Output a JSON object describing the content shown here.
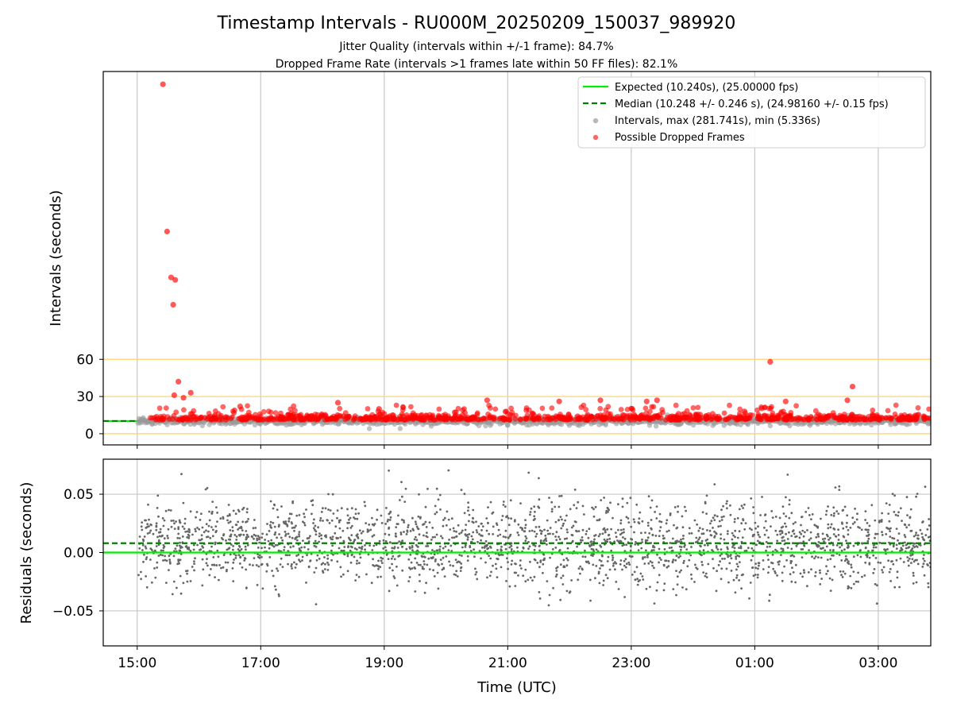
{
  "title": "Timestamp Intervals - RU000M_20250209_150037_989920",
  "subtitle_1": "Jitter Quality (intervals within +/-1 frame): 84.7%",
  "subtitle_2": "Dropped Frame Rate (intervals >1 frames late within 50 FF files): 82.1%",
  "colors": {
    "expected": "#00ee00",
    "median": "#007f00",
    "intervals": "#999999",
    "dropped": "#ff0000",
    "threshold": "#ffd36e",
    "grid": "#c8c8c8",
    "residual": "#666666"
  },
  "chart_data": [
    {
      "type": "scatter",
      "ylabel": "Intervals (seconds)",
      "x_range_hours": [
        14.45,
        27.85
      ],
      "ylim": [
        -9,
        292
      ],
      "y_ticks": [
        0,
        30,
        60
      ],
      "grid": "vertical",
      "threshold_lines": [
        0,
        30,
        60
      ],
      "legend_position": "top-right",
      "legend": [
        "Expected (10.240s), (25.00000 fps)",
        "Median (10.248 +/- 0.246 s), (24.98160 +/- 0.15 fps)",
        "Intervals, max (281.741s), min (5.336s)",
        "Possible Dropped Frames"
      ],
      "expected_interval": 10.24,
      "median_interval": 10.248,
      "dropped_frame_outliers": [
        {
          "time": "15:25",
          "interval": 281.7
        },
        {
          "time": "15:29",
          "interval": 163
        },
        {
          "time": "15:33",
          "interval": 126
        },
        {
          "time": "15:37",
          "interval": 124
        },
        {
          "time": "15:35",
          "interval": 104
        },
        {
          "time": "15:40",
          "interval": 42
        },
        {
          "time": "15:45",
          "interval": 29
        },
        {
          "time": "15:52",
          "interval": 33
        },
        {
          "time": "15:36",
          "interval": 31
        },
        {
          "time": "16:40",
          "interval": 22
        },
        {
          "time": "18:15",
          "interval": 25
        },
        {
          "time": "18:55",
          "interval": 20
        },
        {
          "time": "20:40",
          "interval": 27
        },
        {
          "time": "21:50",
          "interval": 26
        },
        {
          "time": "22:30",
          "interval": 27
        },
        {
          "time": "23:15",
          "interval": 26
        },
        {
          "time": "23:25",
          "interval": 27
        },
        {
          "time": "24:50",
          "interval": 18
        },
        {
          "time": "25:15",
          "interval": 58
        },
        {
          "time": "25:30",
          "interval": 26
        },
        {
          "time": "26:35",
          "interval": 38
        },
        {
          "time": "26:30",
          "interval": 27
        }
      ]
    },
    {
      "type": "scatter",
      "ylabel": "Residuals (seconds)",
      "xlabel": "Time (UTC)",
      "x_range_hours": [
        14.45,
        27.85
      ],
      "ylim": [
        -0.08,
        0.08
      ],
      "y_ticks": [
        "0.05",
        "0.00",
        "−0.05"
      ],
      "x_ticks": [
        "15:00",
        "17:00",
        "19:00",
        "21:00",
        "23:00",
        "01:00",
        "03:00"
      ],
      "grid": "both",
      "expected_residual": 0.0,
      "median_residual": 0.008,
      "residual_spread_sd": 0.018
    }
  ]
}
